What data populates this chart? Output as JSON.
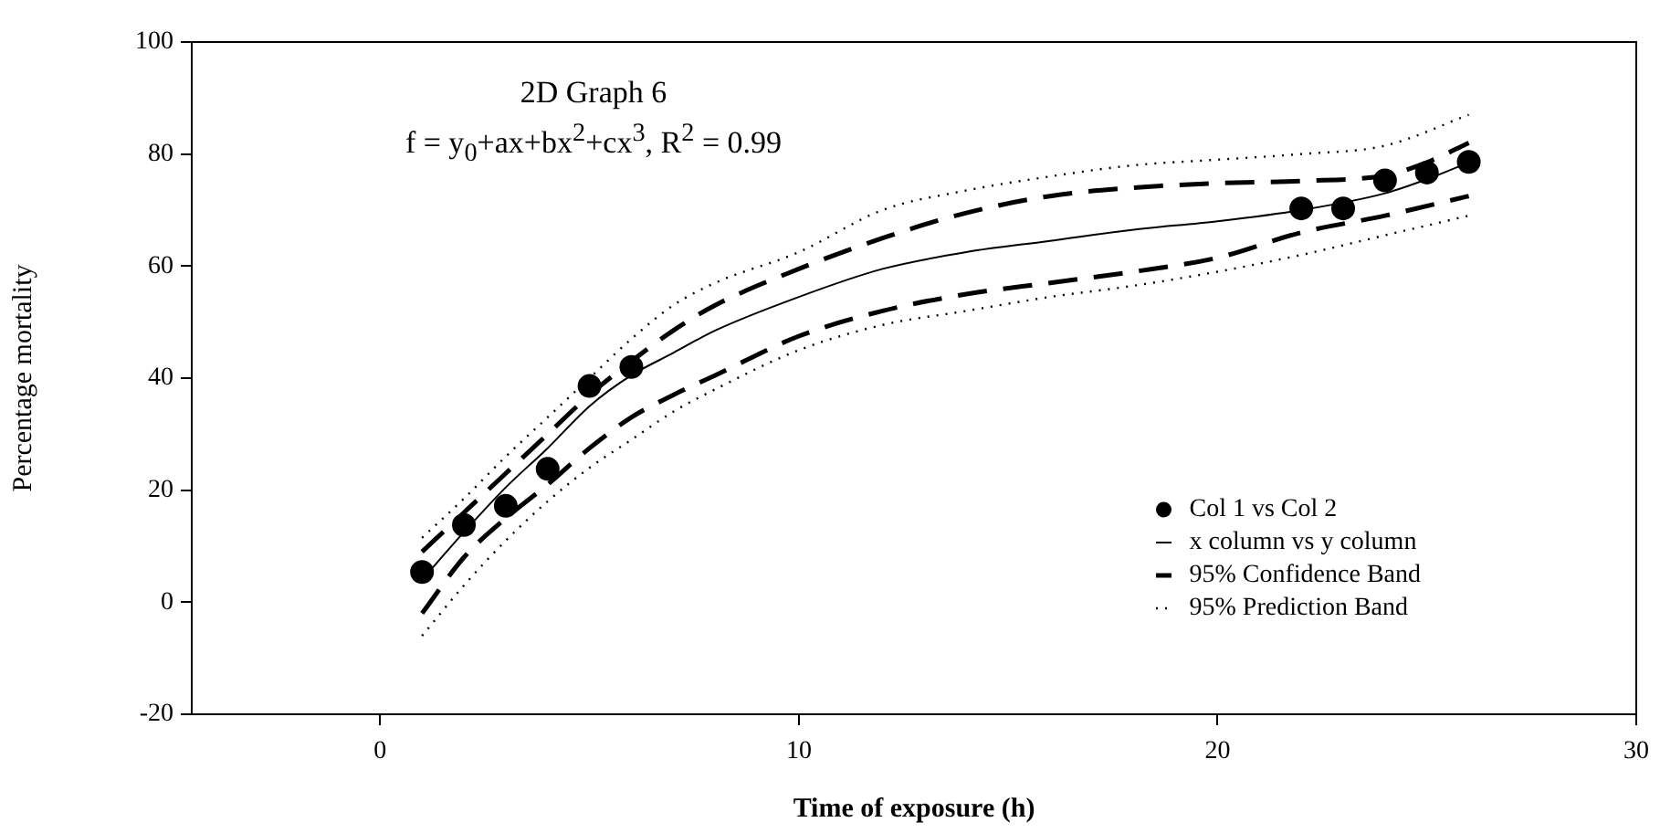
{
  "chart_data": {
    "type": "line",
    "title": "2D Graph 6",
    "subtitle": "f = y$_{0}$+ax+bx$^{2}$+cx$^{3}$, R$^{2}$ = 0.99",
    "xlabel": "Time of exposure (h)",
    "ylabel": "Percentage mortality",
    "xlim": [
      -4.5,
      30
    ],
    "xticks": [
      0,
      10,
      20,
      30
    ],
    "ylim": [
      -20,
      100
    ],
    "yticks": [
      -20,
      0,
      20,
      40,
      60,
      80,
      100
    ],
    "grid": false,
    "legend": "bottom right",
    "series": [
      {
        "name": "Col 1 vs Col 2",
        "type": "scatter",
        "marker": "circle",
        "color": "#000000",
        "x": [
          1,
          2,
          3,
          4,
          5,
          6,
          22,
          23,
          24,
          25,
          26
        ],
        "values": [
          5.4,
          13.8,
          17.2,
          23.8,
          38.6,
          42,
          70.3,
          70.3,
          75.3,
          76.7,
          78.6
        ]
      },
      {
        "name": "x column vs y column",
        "type": "line",
        "line_style": "solid",
        "marker": "none",
        "color": "#000000",
        "x": [
          1,
          2,
          3,
          4,
          5,
          6,
          7,
          8,
          10,
          12,
          14,
          16,
          18,
          20,
          22,
          24,
          25,
          26
        ],
        "values": [
          4,
          12.5,
          20.5,
          27.5,
          35,
          40.5,
          44.5,
          48.5,
          54.5,
          59.5,
          62.5,
          64.5,
          66.5,
          68,
          70,
          73,
          75.5,
          78.5
        ]
      },
      {
        "name": "95% Confidence Band",
        "type": "line",
        "line_style": "dashed",
        "marker": "none",
        "color": "#000000",
        "x": [
          1,
          2,
          3,
          4,
          5,
          6,
          7,
          8,
          10,
          12,
          14,
          16,
          18,
          20,
          22,
          24,
          25,
          26
        ],
        "values": [
          9,
          16,
          23,
          30,
          37,
          43,
          48.5,
          53,
          59.5,
          65,
          69.5,
          72.5,
          74,
          74.8,
          75.2,
          76.2,
          78.5,
          82
        ]
      },
      {
        "type": "line",
        "line_style": "dashed",
        "marker": "none",
        "color": "#000000",
        "x": [
          1,
          2,
          3,
          4,
          5,
          6,
          7,
          8,
          10,
          12,
          14,
          16,
          18,
          20,
          22,
          24,
          26
        ],
        "values": [
          -2,
          8,
          15,
          21,
          27.5,
          33,
          37,
          40.5,
          47.5,
          52,
          55,
          57,
          59,
          61.5,
          66,
          69,
          72.5
        ]
      },
      {
        "name": "95% Prediction Band",
        "type": "line",
        "line_style": "dotted",
        "marker": "none",
        "color": "#000000",
        "x": [
          1,
          2,
          3,
          4,
          5,
          6,
          7,
          8,
          10,
          12,
          14,
          16,
          18,
          20,
          22,
          24,
          26
        ],
        "values": [
          11.5,
          18.5,
          26,
          33,
          40,
          47,
          53,
          57,
          62.5,
          70,
          73.5,
          76,
          78,
          79,
          80,
          81.5,
          87
        ]
      },
      {
        "type": "line",
        "line_style": "dotted",
        "marker": "none",
        "color": "#000000",
        "x": [
          1,
          2,
          3,
          4,
          5,
          6,
          7,
          8,
          10,
          12,
          14,
          16,
          18,
          20,
          22,
          24,
          26
        ],
        "values": [
          -6,
          3,
          11,
          18,
          24,
          29,
          34,
          38,
          45,
          49.5,
          52,
          54.5,
          56.5,
          59,
          62,
          65.5,
          69
        ]
      }
    ]
  }
}
